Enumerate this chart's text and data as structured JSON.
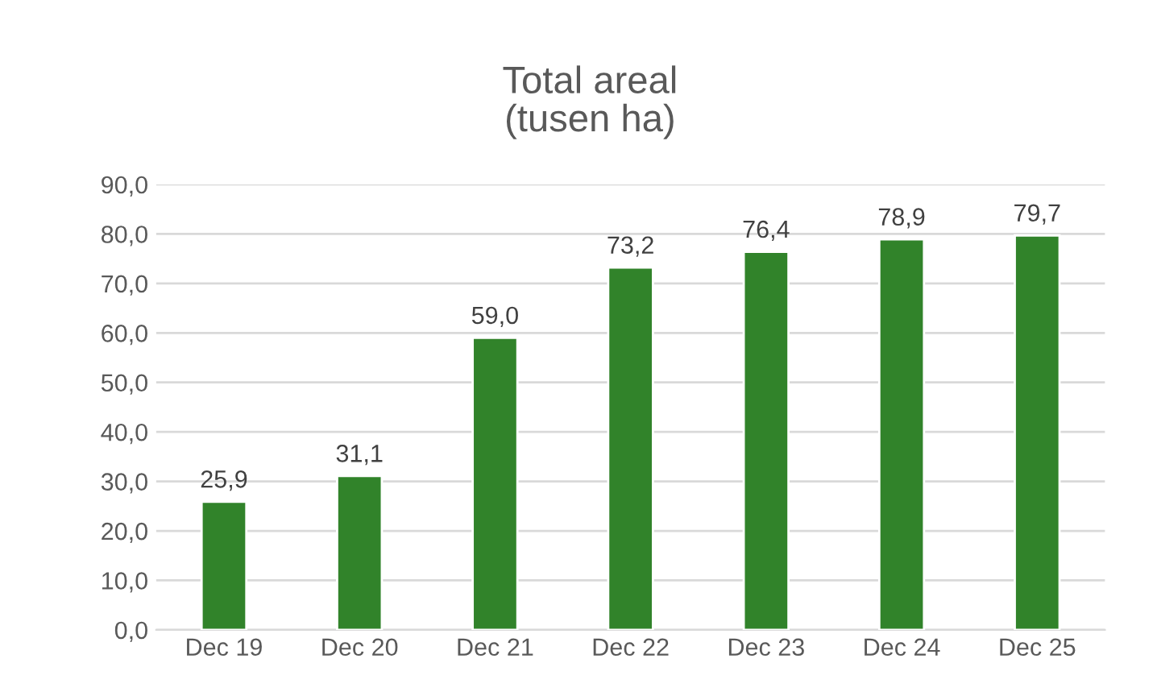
{
  "chart_data": {
    "type": "bar",
    "title": "Total areal\n(tusen ha)",
    "categories": [
      "Dec 19",
      "Dec 20",
      "Dec 21",
      "Dec 22",
      "Dec 23",
      "Dec 24",
      "Dec 25"
    ],
    "values": [
      25.9,
      31.1,
      59.0,
      73.2,
      76.4,
      78.9,
      79.7
    ],
    "value_labels": [
      "25,9",
      "31,1",
      "59,0",
      "73,2",
      "76,4",
      "78,9",
      "79,7"
    ],
    "color": "#31832a",
    "ylim": [
      0,
      90
    ],
    "yticks": [
      {
        "value": 0,
        "label": "0,0"
      },
      {
        "value": 10,
        "label": "10,0"
      },
      {
        "value": 20,
        "label": "20,0"
      },
      {
        "value": 30,
        "label": "30,0"
      },
      {
        "value": 40,
        "label": "40,0"
      },
      {
        "value": 50,
        "label": "50,0"
      },
      {
        "value": 60,
        "label": "60,0"
      },
      {
        "value": 70,
        "label": "70,0"
      },
      {
        "value": 80,
        "label": "80,0"
      },
      {
        "value": 90,
        "label": "90,0"
      }
    ],
    "grid": "y"
  }
}
